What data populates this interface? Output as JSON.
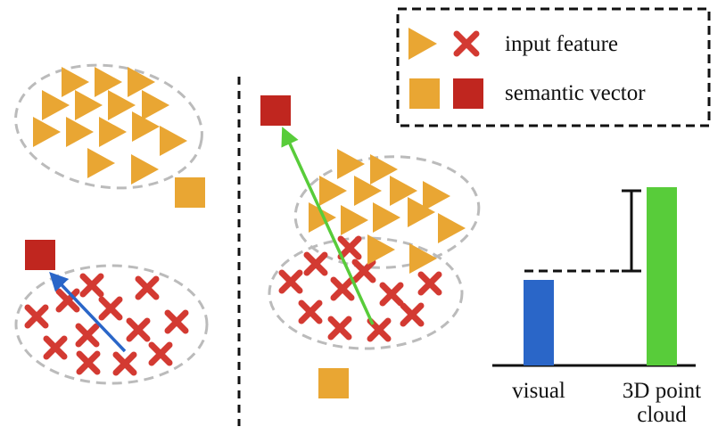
{
  "legend": {
    "input_feature_label": "input feature",
    "semantic_vector_label": "semantic vector"
  },
  "bar_chart": {
    "categories": [
      "visual",
      "3D point cloud"
    ],
    "category_lines": [
      [
        "visual"
      ],
      [
        "3D point",
        "cloud"
      ]
    ],
    "values": [
      0.48,
      1.0
    ],
    "colors": [
      "#2a66c8",
      "#58cc3a"
    ]
  },
  "colors": {
    "triangle": "#e9a633",
    "cross": "#d33a32",
    "semantic_red": "#c0261f",
    "semantic_orange": "#e9a633",
    "arrow_blue": "#2a66c8",
    "arrow_green": "#58cc3a",
    "cluster_border": "#bbbbbb"
  }
}
